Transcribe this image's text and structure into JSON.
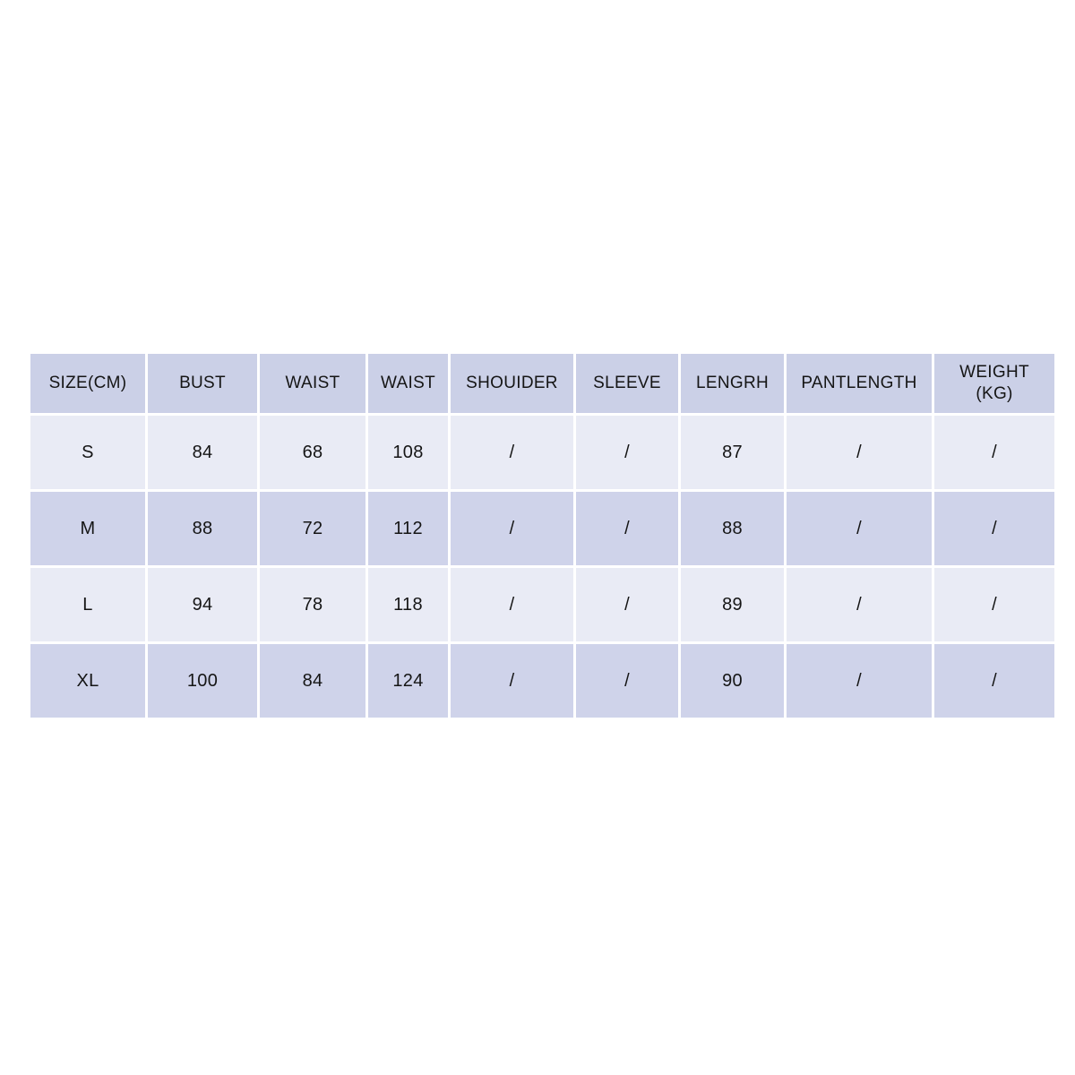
{
  "page": {
    "background": "#ffffff"
  },
  "chart_data": {
    "type": "table",
    "title": "",
    "columns": [
      "SIZE(CM)",
      "BUST",
      "WAIST",
      "WAIST",
      "SHOUIDER",
      "SLEEVE",
      "LENGRH",
      "PANTLENGTH",
      "WEIGHT\n(KG)"
    ],
    "rows": [
      [
        "S",
        "84",
        "68",
        "108",
        "/",
        "/",
        "87",
        "/",
        "/"
      ],
      [
        "M",
        "88",
        "72",
        "112",
        "/",
        "/",
        "88",
        "/",
        "/"
      ],
      [
        "L",
        "94",
        "78",
        "118",
        "/",
        "/",
        "89",
        "/",
        "/"
      ],
      [
        "XL",
        "100",
        "84",
        "124",
        "/",
        "/",
        "90",
        "/",
        "/"
      ]
    ],
    "colors": {
      "header_bg": "#cbd0e7",
      "row_dark_bg": "#cfd3ea",
      "row_light_bg": "#e9ebf5",
      "cell_gap": "#ffffff",
      "text": "#151515"
    },
    "layout": {
      "grid": "white 3px gaps between cells",
      "striping": "data rows alternate light/dark starting with light",
      "legend_position": "none"
    }
  }
}
